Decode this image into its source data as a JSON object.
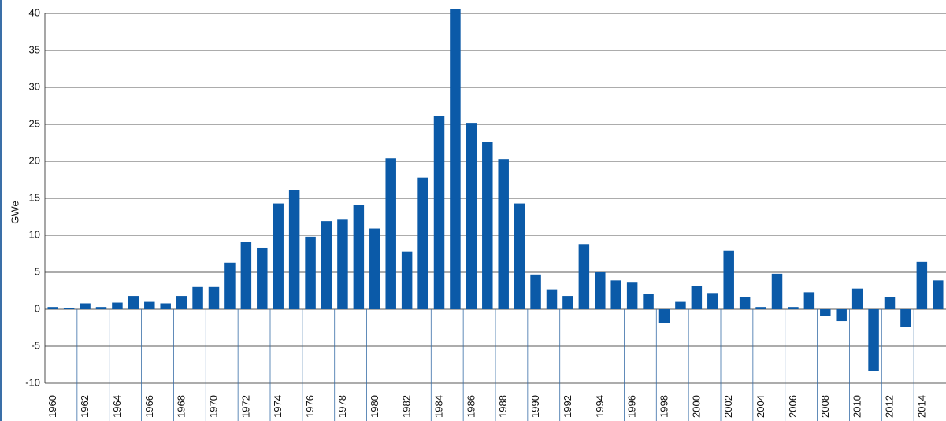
{
  "chart_data": {
    "type": "bar",
    "y_label": "GWe",
    "color": "#0b5aa8",
    "grid": true,
    "categories": [
      "1960",
      null,
      "1962",
      null,
      "1964",
      null,
      "1966",
      null,
      "1968",
      null,
      "1970",
      null,
      "1972",
      null,
      "1974",
      null,
      "1976",
      null,
      "1978",
      null,
      "1980",
      null,
      "1982",
      null,
      "1984",
      null,
      "1986",
      null,
      "1988",
      null,
      "1990",
      null,
      "1992",
      null,
      "1994",
      null,
      "1996",
      null,
      "1998",
      null,
      "2000",
      null,
      "2002",
      null,
      "2004",
      null,
      "2006",
      null,
      "2008",
      null,
      "2010",
      null,
      "2012",
      null,
      "2014",
      null
    ],
    "values": [
      0.3,
      0.2,
      0.8,
      0.3,
      0.9,
      1.8,
      1.0,
      0.8,
      1.8,
      3.0,
      3.0,
      6.3,
      9.1,
      8.3,
      14.3,
      16.1,
      9.8,
      11.9,
      12.2,
      14.1,
      10.9,
      20.4,
      7.8,
      17.8,
      26.1,
      40.6,
      25.2,
      22.6,
      20.3,
      14.3,
      4.7,
      2.7,
      1.8,
      8.8,
      5.0,
      3.9,
      3.7,
      2.1,
      -1.9,
      1.0,
      3.1,
      2.2,
      7.9,
      1.7,
      0.3,
      4.8,
      0.3,
      2.3,
      -0.9,
      -1.6,
      2.8,
      -8.3,
      1.6,
      -2.4,
      6.4,
      3.9
    ],
    "ylim": [
      -10,
      40
    ],
    "yticks": [
      -10,
      -5,
      0,
      5,
      10,
      15,
      20,
      25,
      30,
      35,
      40
    ]
  }
}
